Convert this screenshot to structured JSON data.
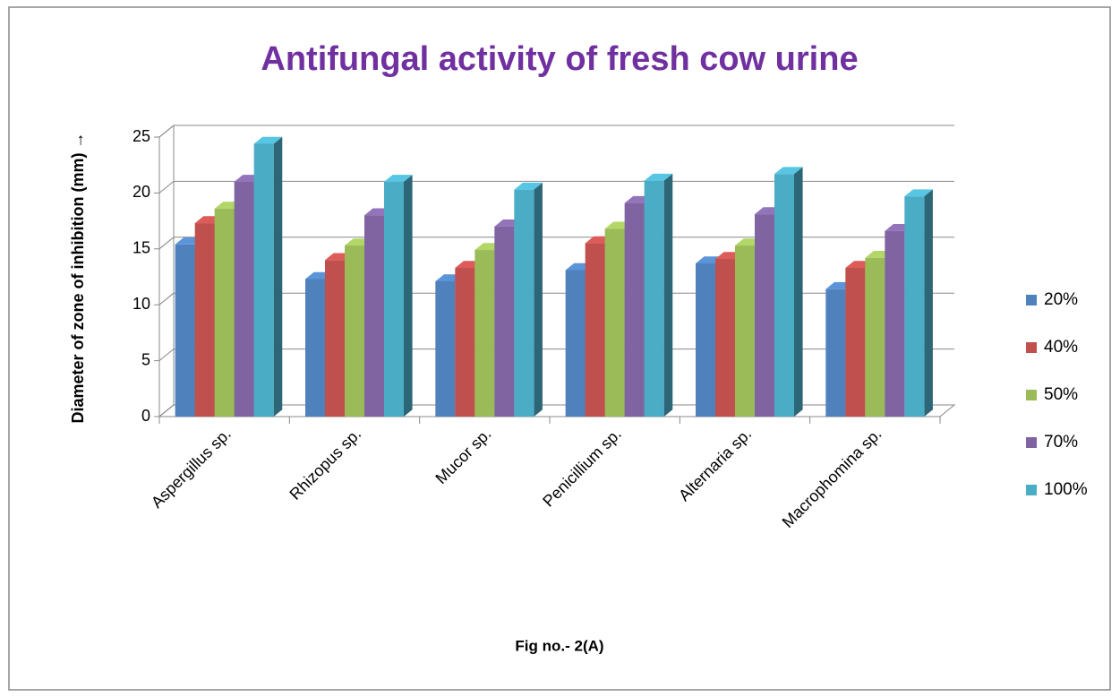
{
  "chart_data": {
    "type": "bar3d",
    "title": "Antifungal activity of fresh cow urine",
    "y_label": "Diameter of zone of inhibition (mm) →",
    "caption": "Fig no.- 2(A)",
    "categories": [
      "Aspergillus sp.",
      "Rhizopus sp.",
      "Mucor sp.",
      "Penicillium sp.",
      "Alternaria sp.",
      "Macrophomina sp."
    ],
    "series": [
      {
        "name": "20%",
        "color": "#4f81bd",
        "values": [
          15.4,
          12.3,
          12.1,
          13.1,
          13.7,
          11.4
        ]
      },
      {
        "name": "40%",
        "color": "#c0504d",
        "values": [
          17.3,
          14.0,
          13.3,
          15.5,
          14.1,
          13.3
        ]
      },
      {
        "name": "50%",
        "color": "#9bbb59",
        "values": [
          18.6,
          15.3,
          14.9,
          16.8,
          15.3,
          14.2
        ]
      },
      {
        "name": "70%",
        "color": "#8064a2",
        "values": [
          21.0,
          18.0,
          17.0,
          19.1,
          18.1,
          16.6
        ]
      },
      {
        "name": "100%",
        "color": "#4bacc6",
        "values": [
          24.4,
          21.0,
          20.3,
          21.1,
          21.7,
          19.7
        ]
      }
    ],
    "ylim": [
      0,
      25
    ],
    "yticks": [
      0,
      5,
      10,
      15,
      20,
      25
    ],
    "grid": true,
    "legend": "right"
  }
}
